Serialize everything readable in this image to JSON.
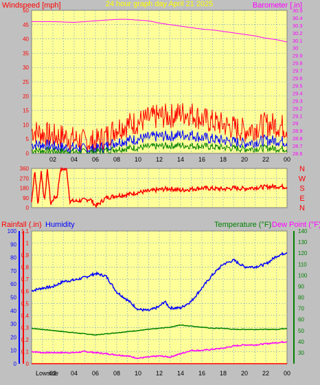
{
  "title": "24 hour graph day   April 21 2025",
  "colors": {
    "background": "#c0c0c0",
    "plot_bg": "#ffff99",
    "grid": "#5b8fd6",
    "wind": "#ff0000",
    "gust_avg": "#0000ff",
    "wind_low": "#008000",
    "baro": "#ff00ff",
    "title": "#ffff00",
    "humidity": "#0000ff",
    "temperature": "#008000",
    "dewpoint": "#ff00ff",
    "rainfall": "#ff0000"
  },
  "hour_ticks": [
    "02",
    "04",
    "06",
    "08",
    "10",
    "12",
    "14",
    "16",
    "18",
    "20",
    "22",
    "00"
  ],
  "compass_labels": [
    "N",
    "W",
    "S",
    "E",
    "N"
  ],
  "lowside_label": "Lowside",
  "chart_data": [
    {
      "type": "line",
      "id": "wind_baro",
      "title": "24 hour graph day   April 21 2025",
      "ylabel": "Windspeed [mph]",
      "y2label": "Barometer [.in]",
      "ylim": [
        0,
        50
      ],
      "y2lim": [
        28.6,
        30.5
      ],
      "yticks": [
        "0",
        "5",
        "10",
        "15",
        "20",
        "25",
        "30",
        "35",
        "40",
        "45",
        "50"
      ],
      "y2ticks": [
        "28.6",
        "28.7",
        "28.8",
        "28.9",
        "29",
        "29.1",
        "29.2",
        "29.3",
        "29.4",
        "29.5",
        "29.6",
        "29.7",
        "29.8",
        "29.9",
        "30",
        "30.1",
        "30.2",
        "30.3",
        "30.4",
        "30.5"
      ],
      "xlim": [
        0,
        24
      ],
      "grid": true,
      "series": [
        {
          "name": "Barometer [.in]",
          "axis": "y2",
          "x": [
            0,
            2,
            4,
            6,
            7,
            8,
            9,
            10,
            11,
            12,
            13,
            14,
            15,
            16,
            17,
            18,
            19,
            20,
            21,
            22,
            23,
            24
          ],
          "values": [
            30.35,
            30.35,
            30.34,
            30.36,
            30.37,
            30.38,
            30.38,
            30.37,
            30.36,
            30.33,
            30.31,
            30.29,
            30.27,
            30.25,
            30.24,
            30.22,
            30.2,
            30.18,
            30.16,
            30.13,
            30.11,
            30.08
          ]
        },
        {
          "name": "Wind gust",
          "x": [
            0,
            1,
            2,
            3,
            4,
            5,
            6,
            7,
            8,
            9,
            10,
            11,
            12,
            13,
            14,
            15,
            16,
            17,
            18,
            19,
            20,
            21,
            22,
            23,
            24
          ],
          "values": [
            8,
            7,
            6,
            6,
            5,
            4,
            4,
            6,
            9,
            10,
            11,
            12,
            13,
            13,
            14,
            14,
            12,
            11,
            10,
            9,
            8,
            9,
            10,
            10,
            9
          ]
        },
        {
          "name": "Wind average",
          "x": [
            0,
            1,
            2,
            3,
            4,
            5,
            6,
            7,
            8,
            9,
            10,
            11,
            12,
            13,
            14,
            15,
            16,
            17,
            18,
            19,
            20,
            21,
            22,
            23,
            24
          ],
          "values": [
            3,
            3,
            2.5,
            2,
            2,
            1.5,
            1.5,
            2.5,
            4,
            4.5,
            5,
            5.5,
            6,
            6,
            6.5,
            6.5,
            5.5,
            5,
            4.5,
            4,
            3.5,
            4,
            4.5,
            4.5,
            4
          ]
        },
        {
          "name": "Wind low",
          "x": [
            0,
            2,
            4,
            6,
            8,
            10,
            12,
            14,
            16,
            18,
            20,
            22,
            24
          ],
          "values": [
            1,
            0.8,
            0.5,
            0.5,
            1.5,
            2,
            2.5,
            2.8,
            2.5,
            2,
            1.5,
            1.8,
            1.5
          ]
        }
      ]
    },
    {
      "type": "line",
      "id": "wind_direction",
      "ylim": [
        0,
        360
      ],
      "yticks": [
        "0",
        "90",
        "180",
        "270",
        "360"
      ],
      "xlim": [
        0,
        24
      ],
      "grid": true,
      "series": [
        {
          "name": "Wind direction",
          "x": [
            0,
            0.3,
            0.6,
            0.9,
            1.2,
            1.5,
            1.8,
            2.1,
            2.4,
            2.7,
            3.0,
            3.3,
            3.6,
            3.9,
            4.2,
            5.0,
            5.5,
            6.0,
            6.3,
            6.6,
            7.0,
            7.5,
            8.0,
            9.0,
            10.0,
            11.0,
            12.0,
            13.0,
            14.0,
            15.0,
            16.0,
            17.0,
            18.0,
            19.0,
            20.0,
            21.0,
            22.0,
            23.0,
            24.0
          ],
          "values": [
            50,
            350,
            20,
            340,
            60,
            350,
            30,
            90,
            100,
            350,
            355,
            350,
            60,
            60,
            60,
            70,
            80,
            20,
            30,
            60,
            90,
            100,
            110,
            120,
            140,
            150,
            165,
            175,
            160,
            170,
            180,
            175,
            170,
            180,
            175,
            185,
            190,
            195,
            190
          ]
        }
      ]
    },
    {
      "type": "line",
      "id": "temp_hum_rain",
      "ylabel": "Rainfall (.in)",
      "ylabel2": "Humidity",
      "y2label": "Temperature (°F)",
      "y2label2": "Dew Point (°F)",
      "ylim_rain": [
        0,
        1.1
      ],
      "ylim_hum": [
        0,
        100
      ],
      "y2lim": [
        20,
        140
      ],
      "yticks_rain": [
        "0",
        "0.1",
        "0.2",
        "0.3",
        "0.4",
        "0.5",
        "0.6",
        "0.7",
        "0.8",
        "0.9",
        "1",
        "1.1"
      ],
      "yticks_hum": [
        "0",
        "10",
        "20",
        "30",
        "40",
        "50",
        "60",
        "70",
        "80",
        "90",
        "100"
      ],
      "y2ticks": [
        "30",
        "40",
        "50",
        "60",
        "70",
        "80",
        "90",
        "100",
        "110",
        "120",
        "130",
        "140"
      ],
      "xlim": [
        0,
        24
      ],
      "grid": true,
      "series": [
        {
          "name": "Humidity",
          "axis": "hum",
          "x": [
            0,
            1,
            2,
            3,
            4,
            5,
            6,
            7,
            7.5,
            8,
            9,
            10,
            11,
            12,
            12.5,
            13,
            14,
            15,
            16,
            17,
            18,
            19,
            20,
            21,
            22,
            23,
            24
          ],
          "values": [
            55,
            57,
            58,
            62,
            63,
            65,
            68,
            66,
            60,
            54,
            48,
            41,
            40,
            43,
            47,
            42,
            42,
            47,
            57,
            67,
            75,
            78,
            73,
            73,
            75,
            81,
            84
          ]
        },
        {
          "name": "Temperature (°F)",
          "axis": "y2",
          "x": [
            0,
            1,
            2,
            3,
            4,
            5,
            6,
            7,
            8,
            9,
            10,
            11,
            12,
            13,
            14,
            15,
            16,
            17,
            18,
            19,
            20,
            21,
            22,
            23,
            24
          ],
          "values": [
            52,
            51,
            50,
            49,
            48,
            47,
            46,
            47,
            48,
            49,
            50,
            51,
            52,
            53,
            55,
            54,
            53,
            52,
            52,
            51,
            51,
            51,
            51,
            51,
            52
          ]
        },
        {
          "name": "Dew Point (°F)",
          "axis": "y2",
          "x": [
            0,
            1,
            2,
            3,
            4,
            5,
            6,
            7,
            8,
            9,
            10,
            11,
            12,
            13,
            14,
            15,
            16,
            17,
            18,
            19,
            20,
            21,
            22,
            23,
            24
          ],
          "values": [
            31,
            30,
            30,
            30,
            30,
            31,
            30,
            29,
            28,
            27,
            25,
            26,
            27,
            26,
            29,
            32,
            32,
            33,
            34,
            36,
            37,
            37,
            38,
            39,
            40
          ]
        },
        {
          "name": "Rainfall (.in)",
          "axis": "rain",
          "x": [
            0,
            24
          ],
          "values": [
            0,
            0
          ]
        }
      ]
    }
  ]
}
